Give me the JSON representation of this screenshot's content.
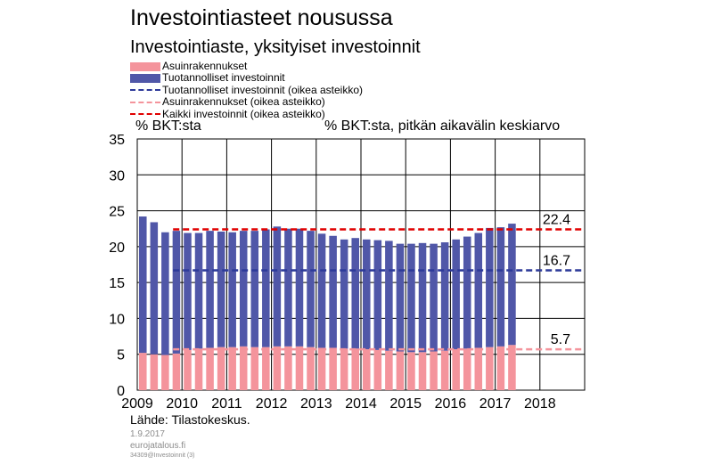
{
  "chart_data": {
    "type": "bar",
    "title": "Investointiasteet nousussa",
    "subtitle": "Investointiaste,  yksityiset  investoinnit",
    "ylabel_left": "% BKT:sta",
    "ylabel_right": "% BKT:sta, pitkän aikavälin keskiarvo",
    "ylim": [
      0,
      35
    ],
    "yticks": [
      0,
      5,
      10,
      15,
      20,
      25,
      30,
      35
    ],
    "xlim": [
      2009,
      2019
    ],
    "xticks": [
      2009,
      2010,
      2011,
      2012,
      2013,
      2014,
      2015,
      2016,
      2017,
      2018
    ],
    "grid": true,
    "stacked": true,
    "quarters": [
      "2009Q1",
      "2009Q2",
      "2009Q3",
      "2009Q4",
      "2010Q1",
      "2010Q2",
      "2010Q3",
      "2010Q4",
      "2011Q1",
      "2011Q2",
      "2011Q3",
      "2011Q4",
      "2012Q1",
      "2012Q2",
      "2012Q3",
      "2012Q4",
      "2013Q1",
      "2013Q2",
      "2013Q3",
      "2013Q4",
      "2014Q1",
      "2014Q2",
      "2014Q3",
      "2014Q4",
      "2015Q1",
      "2015Q2",
      "2015Q3",
      "2015Q4",
      "2016Q1",
      "2016Q2",
      "2016Q3",
      "2016Q4",
      "2017Q1",
      "2017Q2"
    ],
    "series": [
      {
        "name": "Asuinrakennukset",
        "color": "#f4949c",
        "values": [
          5.2,
          5.0,
          4.9,
          5.1,
          5.6,
          5.8,
          5.9,
          6.0,
          6.0,
          6.1,
          6.0,
          6.0,
          6.1,
          6.1,
          6.1,
          6.0,
          5.9,
          5.9,
          5.8,
          5.8,
          5.7,
          5.6,
          5.5,
          5.4,
          5.3,
          5.3,
          5.4,
          5.5,
          5.7,
          5.8,
          5.9,
          6.0,
          6.1,
          6.3
        ]
      },
      {
        "name": "Tuotannolliset investoinnit",
        "color": "#5057a8",
        "values": [
          19.0,
          18.4,
          17.1,
          17.1,
          16.3,
          16.1,
          16.3,
          16.1,
          16.0,
          16.1,
          16.2,
          16.4,
          16.7,
          16.4,
          16.4,
          16.2,
          15.9,
          15.6,
          15.2,
          15.4,
          15.3,
          15.3,
          15.3,
          15.0,
          15.1,
          15.2,
          15.0,
          15.1,
          15.3,
          15.6,
          16.0,
          16.6,
          16.6,
          16.9
        ]
      }
    ],
    "reference_lines": [
      {
        "name": "Tuotannolliset investoinnit (oikea asteikko)",
        "value": 16.7,
        "label": "16.7",
        "color": "#2d3a99"
      },
      {
        "name": "Asuinrakennukset (oikea asteikko)",
        "value": 5.7,
        "label": "5.7",
        "color": "#f4949c"
      },
      {
        "name": "Kaikki investoinnit (oikea asteikko)",
        "value": 22.4,
        "label": "22.4",
        "color": "#e00000"
      }
    ]
  },
  "legend": [
    {
      "label": "Asuinrakennukset",
      "kind": "box",
      "color": "#f4949c"
    },
    {
      "label": "Tuotannolliset investoinnit",
      "kind": "box",
      "color": "#5057a8"
    },
    {
      "label": "Tuotannolliset investoinnit (oikea asteikko)",
      "kind": "line",
      "color": "#2d3a99"
    },
    {
      "label": "Asuinrakennukset (oikea asteikko)",
      "kind": "line",
      "color": "#f4949c"
    },
    {
      "label": "Kaikki investoinnit (oikea asteikko)",
      "kind": "line",
      "color": "#e00000"
    }
  ],
  "footer": {
    "source": "Lähde: Tilastokeskus.",
    "date": "1.9.2017",
    "site": "eurojatalous.fi",
    "code": "34309@Investoinnit   (3)"
  }
}
